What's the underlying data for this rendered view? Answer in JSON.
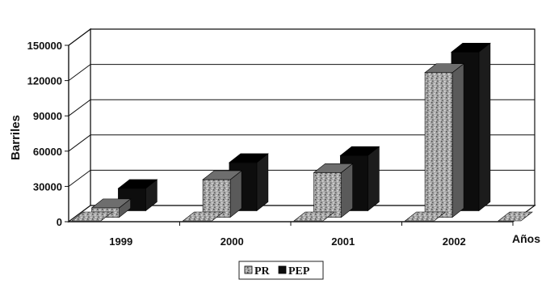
{
  "chart_data": {
    "type": "bar",
    "title": "",
    "xlabel": "Años",
    "ylabel": "Barriles",
    "categories": [
      "1999",
      "2000",
      "2001",
      "2002"
    ],
    "ylim": [
      0,
      150000
    ],
    "yticks": [
      "0",
      "30000",
      "60000",
      "90000",
      "120000",
      "150000"
    ],
    "grid": true,
    "three_d": true,
    "legend_position": "bottom",
    "series": [
      {
        "name": "PR",
        "values": [
          8000,
          32000,
          38000,
          123000
        ],
        "color": "#9a9a9a",
        "pattern": "speckled"
      },
      {
        "name": "PEP",
        "values": [
          19000,
          41000,
          47000,
          135000
        ],
        "color": "#0d0d0d",
        "pattern": "solid"
      }
    ]
  }
}
